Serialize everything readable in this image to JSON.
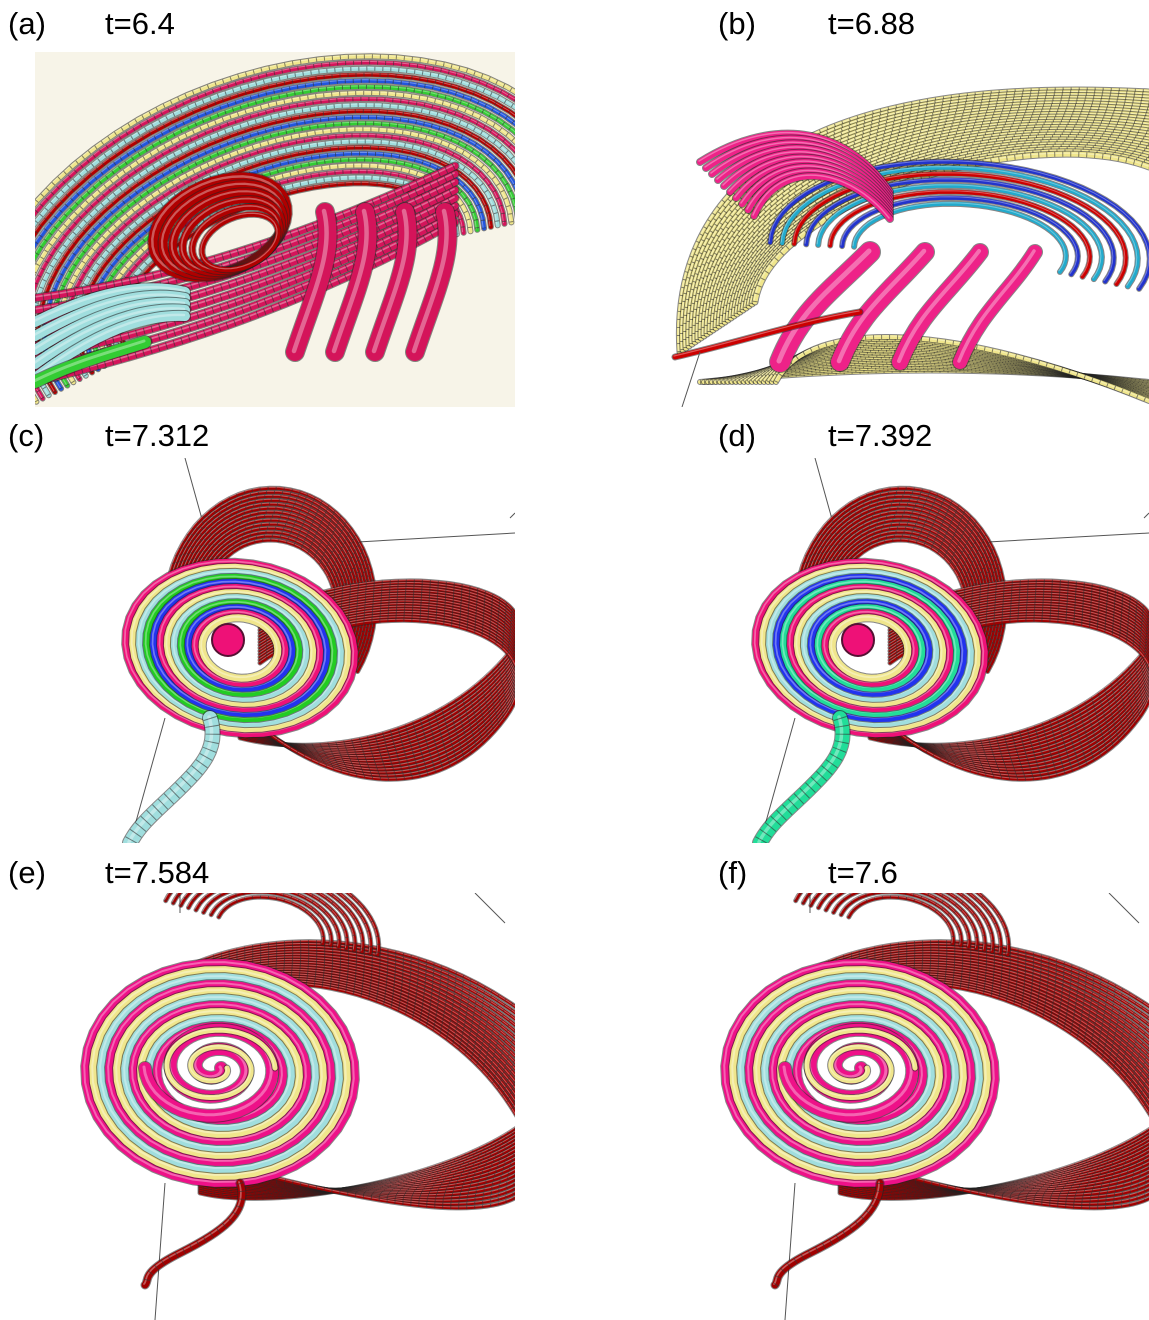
{
  "figure": {
    "panels": [
      {
        "letter": "(a)",
        "time": "t=6.4",
        "scheme": "dense-colored",
        "palette": [
          "#f0e68c",
          "#d4145a",
          "#a0dede",
          "#b00000",
          "#2255dd",
          "#33cc33"
        ]
      },
      {
        "letter": "(b)",
        "time": "t=6.88",
        "scheme": "yellow-sheets",
        "palette": [
          "#f0e68c",
          "#ee2288",
          "#2233cc",
          "#22aacc",
          "#cc0000",
          "#22bb88"
        ]
      },
      {
        "letter": "(c)",
        "time": "t=7.312",
        "scheme": "red-loops-tail",
        "palette": [
          "#a00000",
          "#ee1177",
          "#f0e68c",
          "#a0dede",
          "#22cc22",
          "#2233ee"
        ]
      },
      {
        "letter": "(d)",
        "time": "t=7.392",
        "scheme": "red-loops-tail",
        "palette": [
          "#a00000",
          "#ee1177",
          "#f0e68c",
          "#a0dede",
          "#2233ee",
          "#22dd99"
        ]
      },
      {
        "letter": "(e)",
        "time": "t=7.584",
        "scheme": "red-loops-spiral",
        "palette": [
          "#a00000",
          "#ee1188",
          "#f0e68c",
          "#a0dede",
          "#2233ee"
        ]
      },
      {
        "letter": "(f)",
        "time": "t=7.6",
        "scheme": "red-loops-spiral",
        "palette": [
          "#a00000",
          "#ee1188",
          "#f0e68c",
          "#a0dede",
          "#2233ee"
        ]
      }
    ]
  }
}
